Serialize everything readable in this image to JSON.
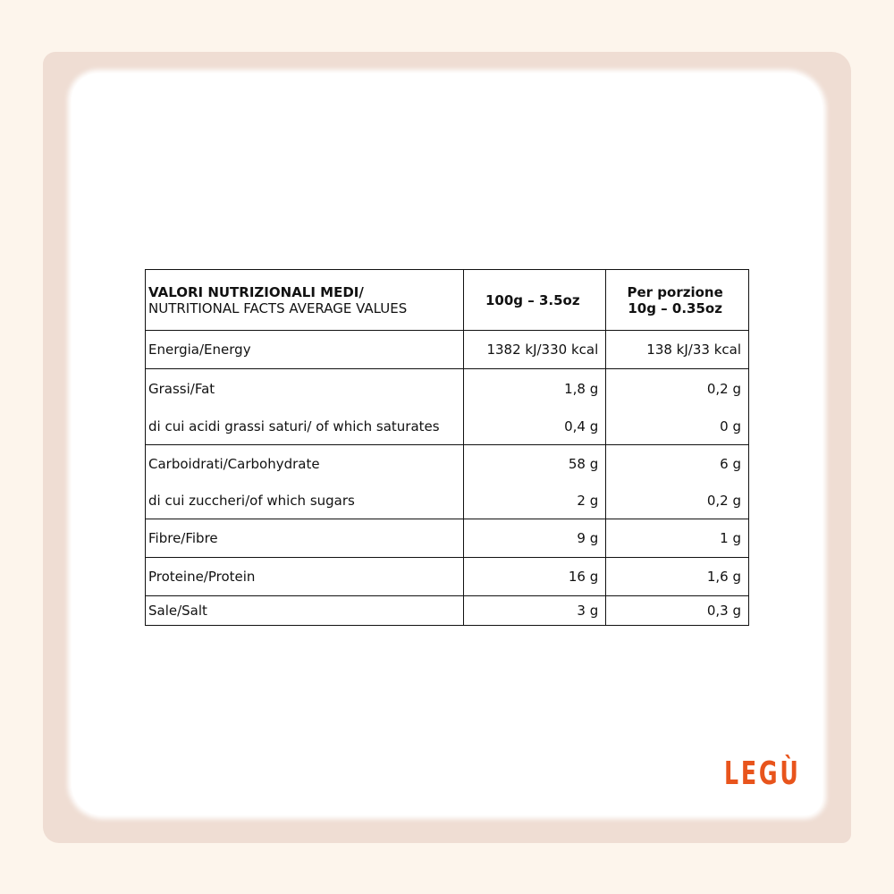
{
  "table": {
    "header": {
      "label_bold": "VALORI NUTRIZIONALI MEDI/",
      "label": "NUTRITIONAL FACTS AVERAGE VALUES",
      "col1": "100g – 3.5oz",
      "col2_line1": "Per porzione",
      "col2_line2": "10g – 0.35oz"
    },
    "rows": [
      {
        "label": "Energia/Energy",
        "v100": "1382 kJ/330 kcal",
        "vport": "138 kJ/33 kcal"
      },
      {
        "label": "Grassi/Fat",
        "v100": "1,8 g",
        "vport": "0,2 g"
      },
      {
        "label": "di cui acidi grassi saturi/ of which saturates",
        "v100": "0,4 g",
        "vport": "0 g"
      },
      {
        "label": "Carboidrati/Carbohydrate",
        "v100": "58 g",
        "vport": "6 g"
      },
      {
        "label": "di cui zuccheri/of which sugars",
        "v100": "2 g",
        "vport": "0,2 g"
      },
      {
        "label": "Fibre/Fibre",
        "v100": "9 g",
        "vport": "1 g"
      },
      {
        "label": "Proteine/Protein",
        "v100": "16 g",
        "vport": "1,6 g"
      },
      {
        "label": "Sale/Salt",
        "v100": "3 g",
        "vport": "0,3 g"
      }
    ]
  },
  "brand": {
    "logo": "LEGÙ",
    "color": "#e8541c"
  }
}
